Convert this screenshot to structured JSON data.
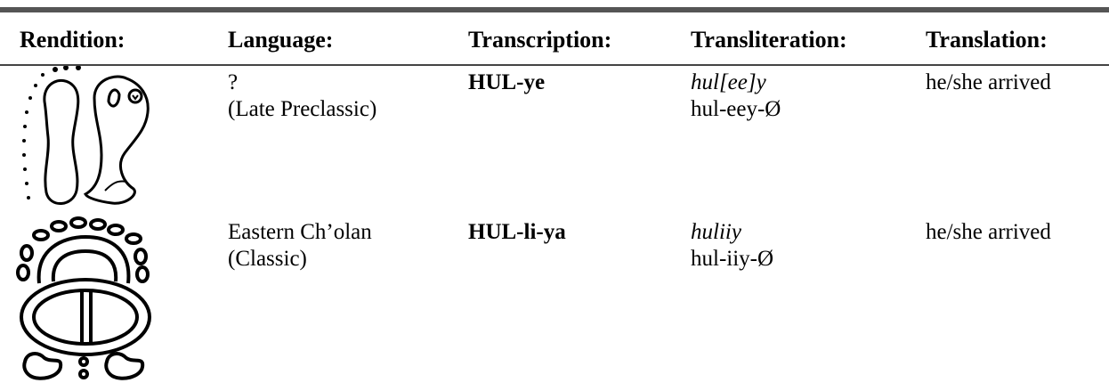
{
  "table": {
    "headers": [
      "Rendition:",
      "Language:",
      "Transcription:",
      "Transliteration:",
      "Translation:"
    ],
    "rows": [
      {
        "language": [
          "?",
          "(Late Preclassic)"
        ],
        "transcription": "HUL-ye",
        "transliteration": [
          "hul[ee]y",
          "hul-eey-Ø"
        ],
        "translation": "he/she arrived"
      },
      {
        "language": [
          "Eastern Ch’olan",
          "(Classic)"
        ],
        "transcription": "HUL-li-ya",
        "transliteration": [
          "huliiy",
          "hul-iiy-Ø"
        ],
        "translation": "he/she arrived"
      }
    ]
  }
}
